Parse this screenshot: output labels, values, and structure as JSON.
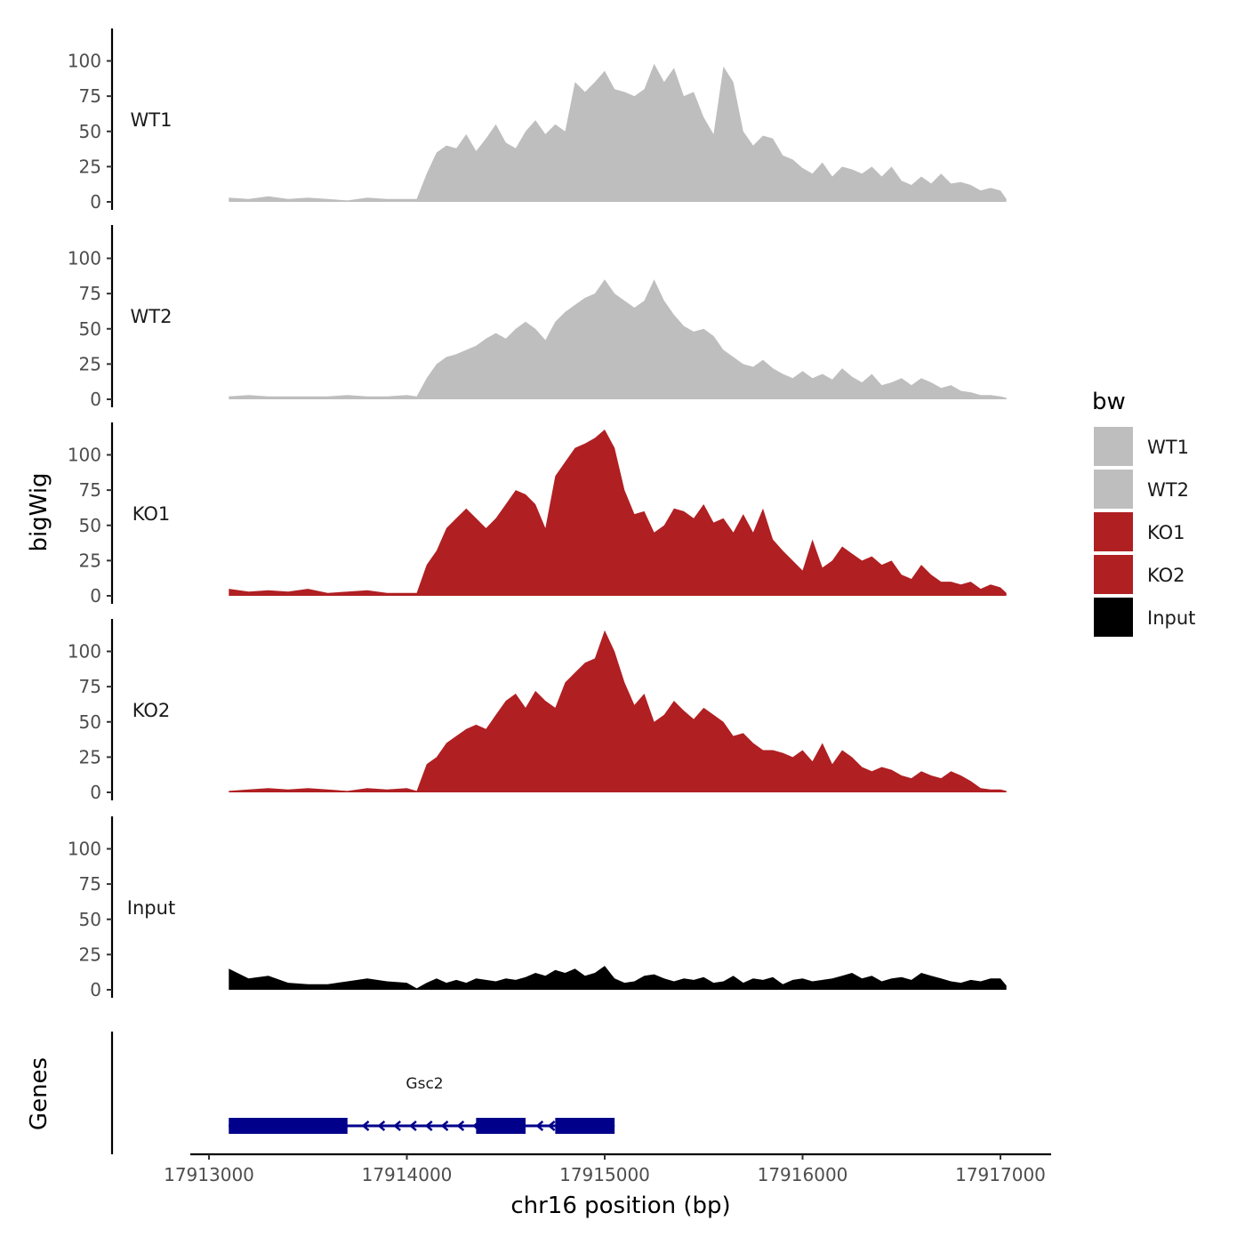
{
  "chart_data": {
    "type": "area",
    "title": "",
    "xlabel": "chr16 position (bp)",
    "ylabel": "bigWig",
    "genes_label": "Genes",
    "legend_title": "bw",
    "ylim": [
      0,
      120
    ],
    "xlim": [
      17912900,
      17917250
    ],
    "x_ticks": [
      17913000,
      17914000,
      17915000,
      17916000,
      17917000
    ],
    "y_ticks": [
      0,
      25,
      50,
      75,
      100
    ],
    "x": [
      17913100,
      17913200,
      17913300,
      17913400,
      17913500,
      17913600,
      17913700,
      17913800,
      17913900,
      17914000,
      17914050,
      17914100,
      17914150,
      17914200,
      17914250,
      17914300,
      17914350,
      17914400,
      17914450,
      17914500,
      17914550,
      17914600,
      17914650,
      17914700,
      17914750,
      17914800,
      17914850,
      17914900,
      17914950,
      17915000,
      17915050,
      17915100,
      17915150,
      17915200,
      17915250,
      17915300,
      17915350,
      17915400,
      17915450,
      17915500,
      17915550,
      17915600,
      17915650,
      17915700,
      17915750,
      17915800,
      17915850,
      17915900,
      17915950,
      17916000,
      17916050,
      17916100,
      17916150,
      17916200,
      17916250,
      17916300,
      17916350,
      17916400,
      17916450,
      17916500,
      17916550,
      17916600,
      17916650,
      17916700,
      17916750,
      17916800,
      17916850,
      17916900,
      17916950,
      17917000,
      17917030
    ],
    "series": [
      {
        "name": "WT1",
        "color": "#bebebe",
        "values": [
          3,
          2,
          4,
          2,
          3,
          2,
          1,
          3,
          2,
          2,
          2,
          20,
          35,
          40,
          38,
          48,
          36,
          45,
          55,
          42,
          38,
          50,
          58,
          48,
          55,
          50,
          85,
          78,
          85,
          93,
          80,
          78,
          75,
          80,
          98,
          85,
          95,
          75,
          78,
          60,
          48,
          96,
          85,
          50,
          40,
          47,
          45,
          33,
          30,
          24,
          20,
          28,
          18,
          25,
          23,
          20,
          25,
          18,
          25,
          15,
          12,
          18,
          13,
          20,
          13,
          14,
          12,
          8,
          10,
          8,
          2
        ]
      },
      {
        "name": "WT2",
        "color": "#bebebe",
        "values": [
          2,
          3,
          2,
          2,
          2,
          2,
          3,
          2,
          2,
          3,
          2,
          15,
          25,
          30,
          32,
          35,
          38,
          43,
          47,
          43,
          50,
          55,
          50,
          42,
          55,
          62,
          67,
          72,
          75,
          85,
          75,
          70,
          65,
          70,
          85,
          70,
          60,
          52,
          48,
          50,
          45,
          35,
          30,
          25,
          23,
          28,
          22,
          18,
          15,
          20,
          15,
          18,
          14,
          22,
          16,
          12,
          18,
          10,
          12,
          15,
          10,
          15,
          12,
          8,
          10,
          6,
          5,
          3,
          3,
          2,
          1
        ]
      },
      {
        "name": "KO1",
        "color": "#b01f22",
        "values": [
          5,
          3,
          4,
          3,
          5,
          2,
          3,
          4,
          2,
          2,
          2,
          22,
          32,
          48,
          55,
          62,
          55,
          48,
          55,
          65,
          75,
          72,
          65,
          48,
          85,
          95,
          105,
          108,
          112,
          118,
          105,
          75,
          58,
          60,
          45,
          50,
          62,
          60,
          55,
          65,
          52,
          55,
          45,
          58,
          45,
          62,
          40,
          32,
          25,
          18,
          40,
          20,
          25,
          35,
          30,
          25,
          28,
          22,
          25,
          15,
          12,
          22,
          15,
          10,
          10,
          8,
          10,
          5,
          8,
          6,
          2
        ]
      },
      {
        "name": "KO2",
        "color": "#b01f22",
        "values": [
          1,
          2,
          3,
          2,
          3,
          2,
          1,
          3,
          2,
          3,
          1,
          20,
          25,
          35,
          40,
          45,
          48,
          45,
          55,
          65,
          70,
          60,
          72,
          65,
          60,
          78,
          85,
          92,
          95,
          115,
          100,
          78,
          62,
          70,
          50,
          55,
          65,
          58,
          52,
          60,
          55,
          50,
          40,
          42,
          35,
          30,
          30,
          28,
          25,
          30,
          22,
          35,
          20,
          30,
          25,
          18,
          15,
          18,
          16,
          12,
          10,
          15,
          12,
          10,
          15,
          12,
          8,
          3,
          2,
          2,
          1
        ]
      },
      {
        "name": "Input",
        "color": "#000000",
        "values": [
          15,
          8,
          10,
          5,
          4,
          4,
          6,
          8,
          6,
          5,
          1,
          5,
          8,
          5,
          7,
          5,
          8,
          7,
          6,
          8,
          7,
          9,
          12,
          10,
          14,
          12,
          15,
          10,
          12,
          17,
          8,
          5,
          6,
          10,
          11,
          8,
          6,
          8,
          7,
          9,
          5,
          6,
          10,
          5,
          8,
          7,
          9,
          4,
          7,
          8,
          6,
          7,
          8,
          10,
          12,
          8,
          10,
          6,
          8,
          9,
          7,
          12,
          10,
          8,
          6,
          5,
          7,
          6,
          8,
          8,
          3
        ]
      }
    ],
    "legend": [
      {
        "label": "WT1",
        "color": "#bebebe"
      },
      {
        "label": "WT2",
        "color": "#bebebe"
      },
      {
        "label": "KO1",
        "color": "#b01f22"
      },
      {
        "label": "KO2",
        "color": "#b01f22"
      },
      {
        "label": "Input",
        "color": "#000000"
      }
    ],
    "gene": {
      "name": "Gsc2",
      "strand": "-",
      "color": "#00008b",
      "exons": [
        [
          17913100,
          17913700
        ],
        [
          17914350,
          17914600
        ],
        [
          17914750,
          17915050
        ]
      ],
      "intron_arrow_positions": [
        17913780,
        17913860,
        17913940,
        17914020,
        17914100,
        17914180,
        17914260,
        17914340,
        17914660,
        17914720
      ]
    },
    "legend_position": "right",
    "grid": false
  }
}
